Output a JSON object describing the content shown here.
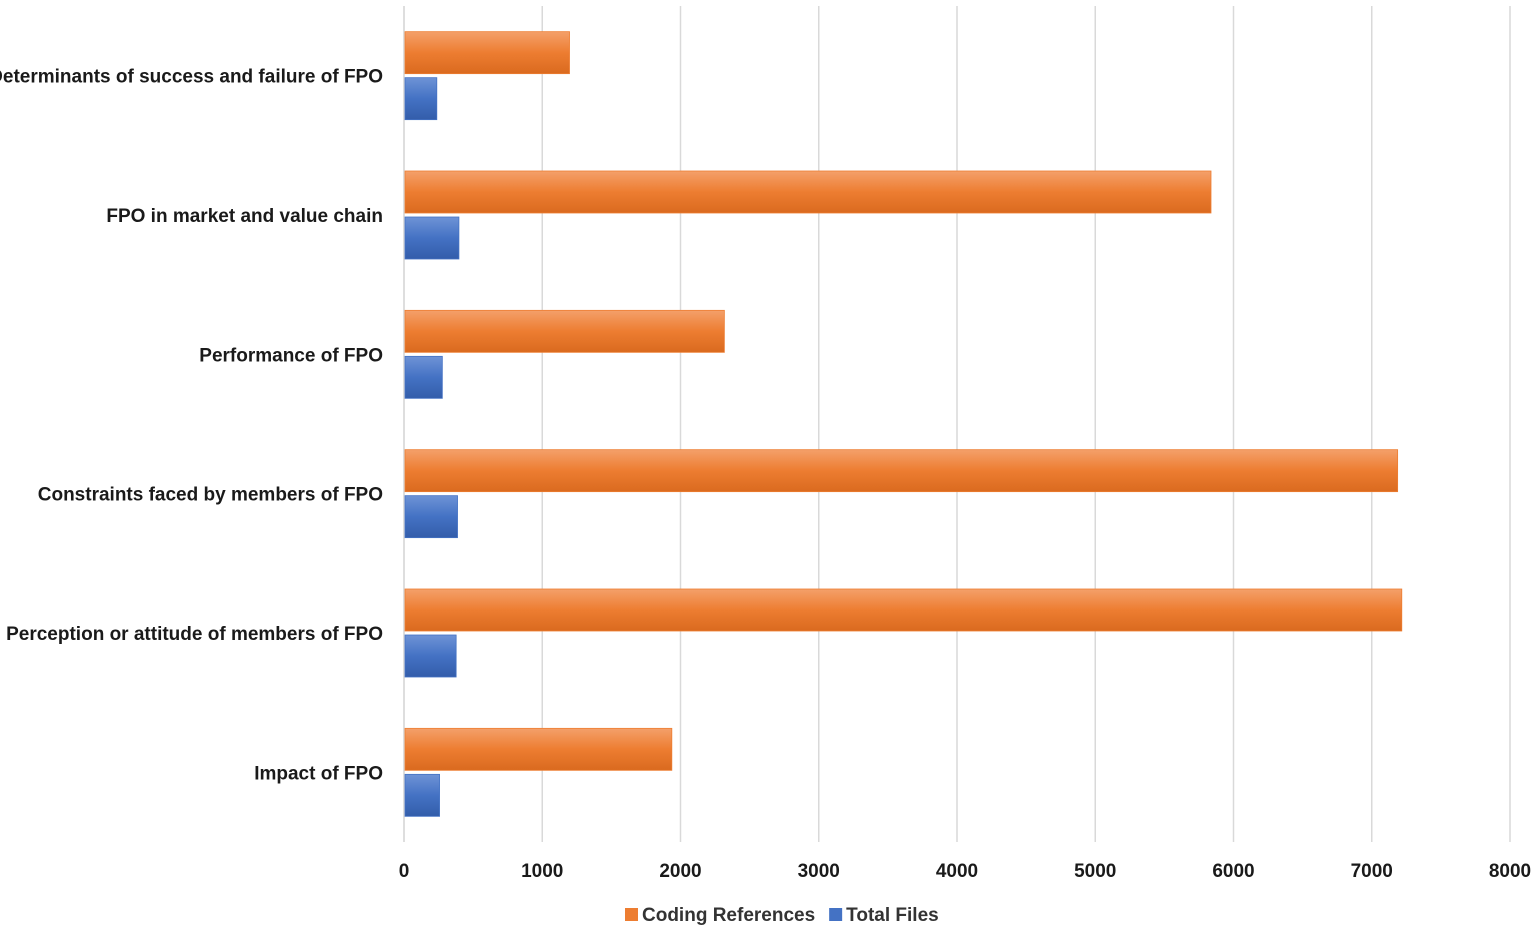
{
  "chart_data": {
    "type": "bar",
    "orientation": "horizontal",
    "title": "",
    "xlabel": "",
    "ylabel": "",
    "categories": [
      "Determinants of success and failure of FPO",
      "FPO in market and value chain",
      "Performance of FPO",
      "Constraints faced by members of FPO",
      "Perception or attitude of members of FPO",
      "Impact of FPO"
    ],
    "series": [
      {
        "name": "Coding References",
        "color": "#ED7D31",
        "values": [
          1190,
          5830,
          2310,
          7180,
          7210,
          1930
        ]
      },
      {
        "name": "Total Files",
        "color": "#4472C4",
        "values": [
          230,
          390,
          270,
          380,
          370,
          250
        ]
      }
    ],
    "xlim": [
      0,
      8000
    ],
    "xticks": [
      0,
      1000,
      2000,
      3000,
      4000,
      5000,
      6000,
      7000,
      8000
    ],
    "grid": "vertical",
    "legend_position": "bottom"
  }
}
